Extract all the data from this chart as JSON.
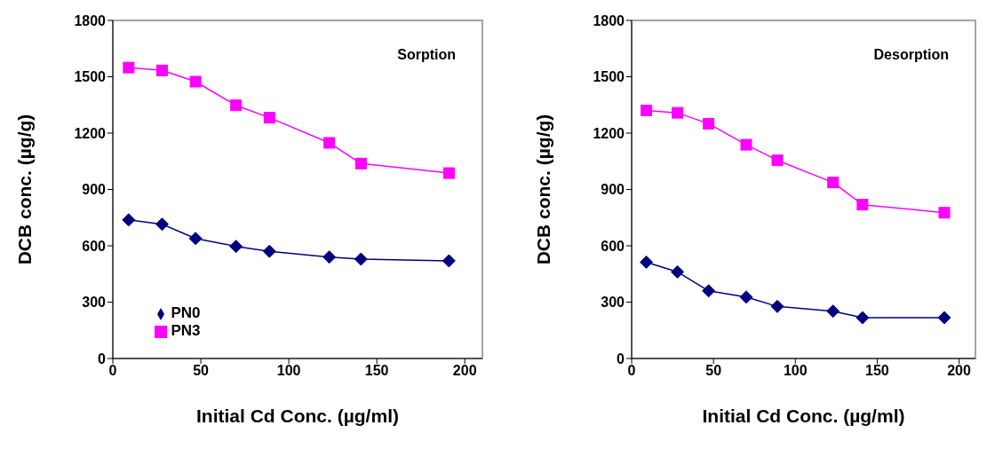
{
  "chart_data": [
    {
      "type": "line",
      "annotations": [
        "Sorption"
      ],
      "xlabel": "Initial Cd Conc. (µg/ml)",
      "ylabel": "DCB conc. (µg/g)",
      "x": [
        9,
        28,
        47,
        70,
        89,
        123,
        141,
        191
      ],
      "xlim": [
        0,
        210
      ],
      "xticks": [
        0,
        50,
        100,
        150,
        200
      ],
      "ylim": [
        0,
        1800
      ],
      "yticks": [
        0,
        300,
        600,
        900,
        1200,
        1500,
        1800
      ],
      "grid": false,
      "legend": "bottom left",
      "series": [
        {
          "name": "PN0",
          "color": "#000080",
          "marker": "diamond",
          "values": [
            738,
            715,
            639,
            597,
            571,
            540,
            529,
            520
          ]
        },
        {
          "name": "PN3",
          "color": "#ff00ff",
          "marker": "square",
          "values": [
            1549,
            1534,
            1474,
            1348,
            1282,
            1148,
            1038,
            987
          ]
        }
      ]
    },
    {
      "type": "line",
      "annotations": [
        "Desorption"
      ],
      "xlabel": "Initial Cd Conc. (µg/ml)",
      "ylabel": "DCB conc. (µg/g)",
      "x": [
        9,
        28,
        47,
        70,
        89,
        123,
        141,
        191
      ],
      "xlim": [
        0,
        210
      ],
      "xticks": [
        0,
        50,
        100,
        150,
        200
      ],
      "ylim": [
        0,
        1800
      ],
      "yticks": [
        0,
        300,
        600,
        900,
        1200,
        1500,
        1800
      ],
      "grid": false,
      "series": [
        {
          "color": "#000080",
          "marker": "diamond",
          "values": [
            513,
            461,
            360,
            327,
            277,
            252,
            217,
            217
          ]
        },
        {
          "color": "#ff00ff",
          "marker": "square",
          "values": [
            1321,
            1308,
            1250,
            1138,
            1055,
            937,
            819,
            776
          ]
        }
      ]
    }
  ]
}
